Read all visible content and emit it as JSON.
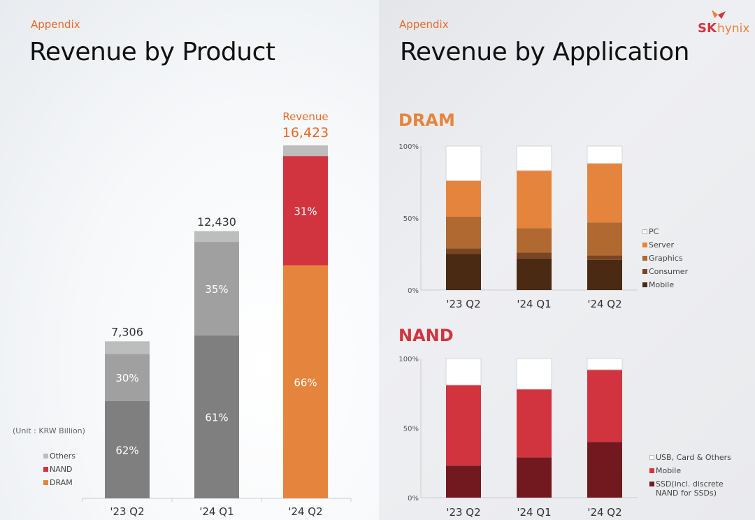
{
  "left": {
    "appendix": "Appendix",
    "title": "Revenue by Product",
    "unit_label": "(Unit : KRW Billion)",
    "revenue_label": "Revenue",
    "legend": [
      {
        "label": "Others",
        "color": "#bdbdbd"
      },
      {
        "label": "NAND",
        "color": "#d1343f"
      },
      {
        "label": "DRAM",
        "color": "#e5853d"
      }
    ]
  },
  "right": {
    "appendix": "Appendix",
    "title": "Revenue by Application",
    "logo": {
      "sk": "SK",
      "hynix": "hynix"
    },
    "dram_title": "DRAM",
    "nand_title": "NAND",
    "dram_legend": [
      {
        "label": "PC",
        "color": "#ffffff"
      },
      {
        "label": "Server",
        "color": "#e5853d"
      },
      {
        "label": "Graphics",
        "color": "#b06930"
      },
      {
        "label": "Consumer",
        "color": "#7a4522"
      },
      {
        "label": "Mobile",
        "color": "#4a2a13"
      }
    ],
    "nand_legend": [
      {
        "label": "USB, Card & Others",
        "color": "#ffffff"
      },
      {
        "label": "Mobile",
        "color": "#d1343f"
      },
      {
        "label": "SSD(incl. discrete NAND for SSDs)",
        "color": "#721920"
      }
    ]
  },
  "colors": {
    "accent_orange": "#e8692b",
    "nand_red": "#d1343f"
  },
  "chart_data": [
    {
      "type": "bar",
      "stacked": true,
      "title": "Revenue by Product",
      "unit": "KRW Billion",
      "categories": [
        "'23 Q2",
        "'24 Q1",
        "'24 Q2"
      ],
      "totals": [
        7306,
        12430,
        16423
      ],
      "total_labels": [
        "7,306",
        "12,430",
        "16,423"
      ],
      "series": [
        {
          "name": "DRAM",
          "share_percent": [
            62,
            61,
            66
          ],
          "labels": [
            "62%",
            "61%",
            "66%"
          ]
        },
        {
          "name": "NAND",
          "share_percent": [
            30,
            35,
            31
          ],
          "labels": [
            "30%",
            "35%",
            "31%"
          ]
        },
        {
          "name": "Others",
          "share_percent": [
            8,
            4,
            3
          ],
          "labels": [
            "",
            "",
            ""
          ]
        }
      ],
      "highlighted_category": "'24 Q2",
      "legend_position": "left"
    },
    {
      "type": "bar",
      "stacked": true,
      "title": "DRAM",
      "categories": [
        "'23 Q2",
        "'24 Q1",
        "'24 Q2"
      ],
      "yticks": [
        "0%",
        "50%",
        "100%"
      ],
      "ylim": [
        0,
        100
      ],
      "series": [
        {
          "name": "Mobile",
          "values": [
            25,
            22,
            21
          ]
        },
        {
          "name": "Consumer",
          "values": [
            4,
            4,
            3
          ]
        },
        {
          "name": "Graphics",
          "values": [
            22,
            17,
            23
          ]
        },
        {
          "name": "Server",
          "values": [
            25,
            40,
            41
          ]
        },
        {
          "name": "PC",
          "values": [
            24,
            17,
            12
          ]
        }
      ],
      "legend_position": "right"
    },
    {
      "type": "bar",
      "stacked": true,
      "title": "NAND",
      "categories": [
        "'23 Q2",
        "'24 Q1",
        "'24 Q2"
      ],
      "yticks": [
        "0%",
        "50%",
        "100%"
      ],
      "ylim": [
        0,
        100
      ],
      "series": [
        {
          "name": "SSD(incl. discrete NAND for SSDs)",
          "values": [
            23,
            29,
            40
          ]
        },
        {
          "name": "Mobile",
          "values": [
            58,
            49,
            52
          ]
        },
        {
          "name": "USB, Card & Others",
          "values": [
            19,
            22,
            8
          ]
        }
      ],
      "legend_position": "right"
    }
  ]
}
